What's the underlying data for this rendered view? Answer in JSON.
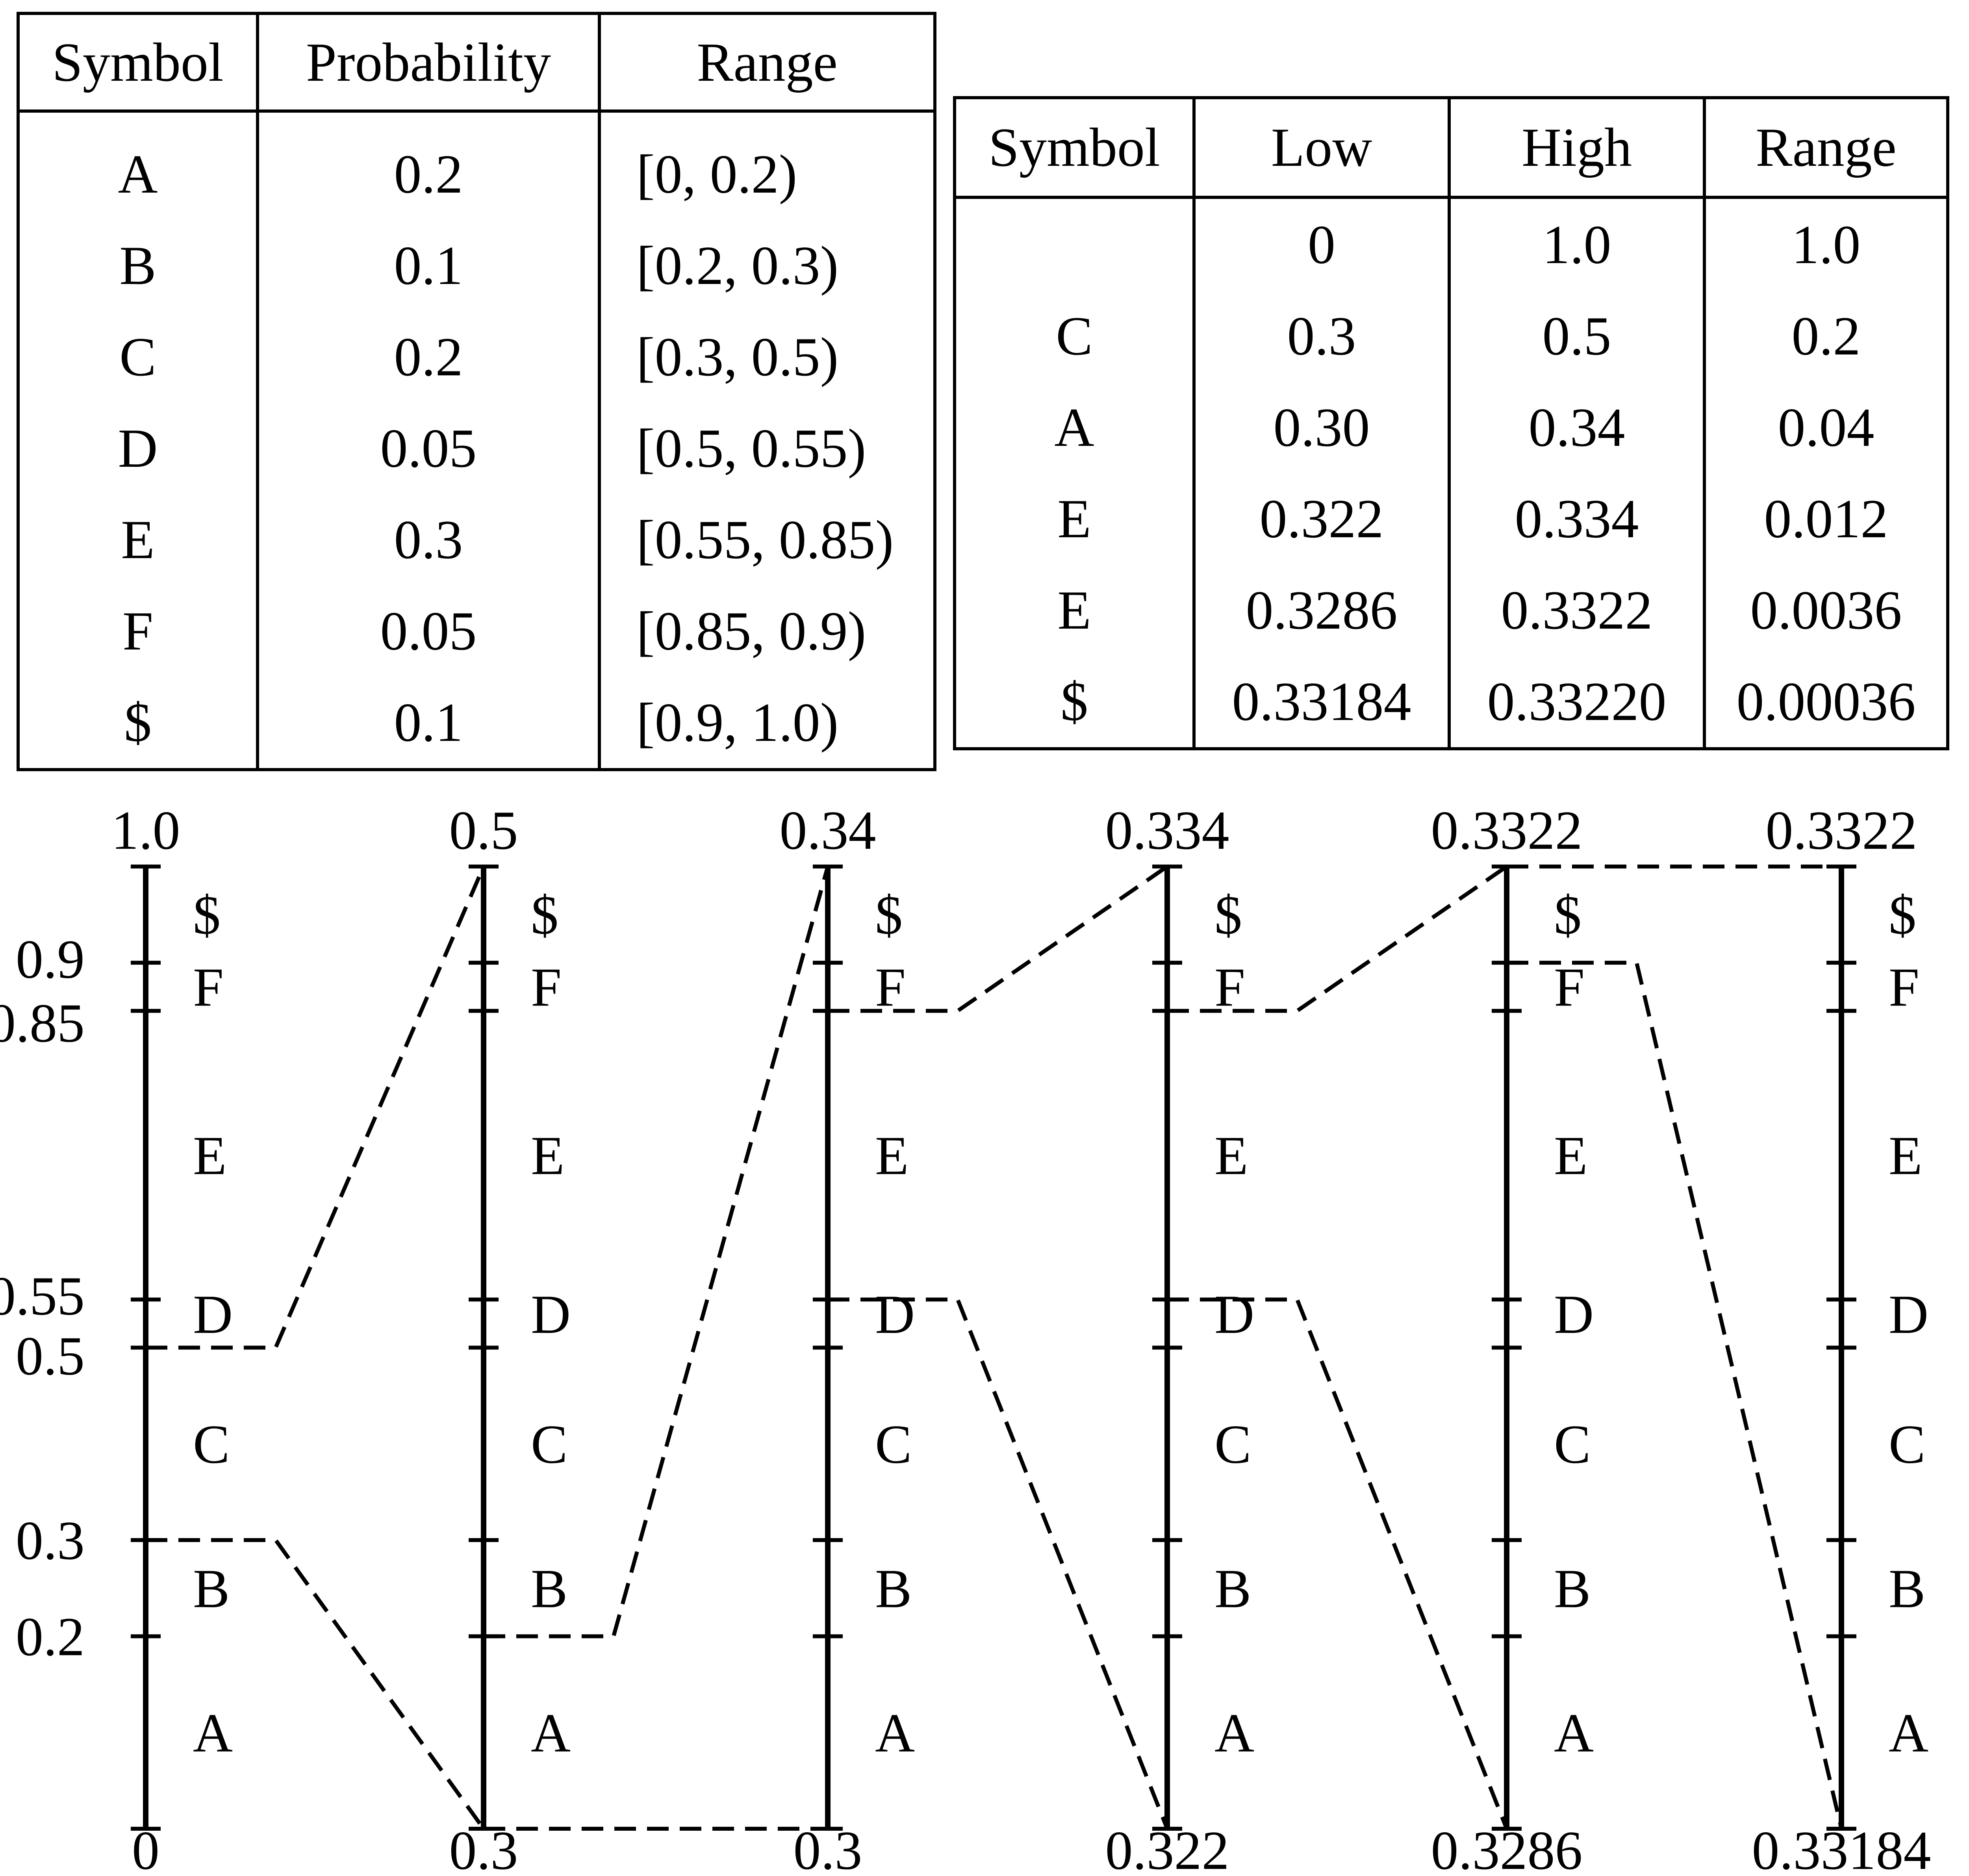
{
  "probability_table": {
    "headers": [
      "Symbol",
      "Probability",
      "Range"
    ],
    "rows": [
      {
        "symbol": "A",
        "probability": "0.2",
        "range": "[0, 0.2)"
      },
      {
        "symbol": "B",
        "probability": "0.1",
        "range": "[0.2, 0.3)"
      },
      {
        "symbol": "C",
        "probability": "0.2",
        "range": "[0.3, 0.5)"
      },
      {
        "symbol": "D",
        "probability": "0.05",
        "range": "[0.5, 0.55)"
      },
      {
        "symbol": "E",
        "probability": "0.3",
        "range": "[0.55, 0.85)"
      },
      {
        "symbol": "F",
        "probability": "0.05",
        "range": "[0.85, 0.9)"
      },
      {
        "symbol": "$",
        "probability": "0.1",
        "range": "[0.9, 1.0)"
      }
    ]
  },
  "coding_table": {
    "headers": [
      "Symbol",
      "Low",
      "High",
      "Range"
    ],
    "rows": [
      {
        "symbol": "",
        "low": "0",
        "high": "1.0",
        "range": "1.0"
      },
      {
        "symbol": "C",
        "low": "0.3",
        "high": "0.5",
        "range": "0.2"
      },
      {
        "symbol": "A",
        "low": "0.30",
        "high": "0.34",
        "range": "0.04"
      },
      {
        "symbol": "E",
        "low": "0.322",
        "high": "0.334",
        "range": "0.012"
      },
      {
        "symbol": "E",
        "low": "0.3286",
        "high": "0.3322",
        "range": "0.0036"
      },
      {
        "symbol": "$",
        "low": "0.33184",
        "high": "0.33220",
        "range": "0.00036"
      }
    ]
  },
  "interval_diagram": {
    "symbols": [
      "A",
      "B",
      "C",
      "D",
      "E",
      "F",
      "$"
    ],
    "boundaries": [
      0.2,
      0.3,
      0.5,
      0.55,
      0.85,
      0.9
    ],
    "boundary_labels": [
      "0.2",
      "0.3",
      "0.5",
      "0.55",
      "0.85",
      "0.9"
    ],
    "scales": [
      {
        "top": "1.0",
        "bottom": "0"
      },
      {
        "top": "0.5",
        "bottom": "0.3"
      },
      {
        "top": "0.34",
        "bottom": "0.3"
      },
      {
        "top": "0.334",
        "bottom": "0.322"
      },
      {
        "top": "0.3322",
        "bottom": "0.3286"
      },
      {
        "top": "0.3322",
        "bottom": "0.33184"
      }
    ],
    "selected_subintervals": [
      {
        "symbol": "C",
        "low": 0.3,
        "high": 0.5
      },
      {
        "symbol": "A",
        "low": 0.0,
        "high": 0.2
      },
      {
        "symbol": "E",
        "low": 0.55,
        "high": 0.85
      },
      {
        "symbol": "E",
        "low": 0.55,
        "high": 0.85
      },
      {
        "symbol": "$",
        "low": 0.9,
        "high": 1.0
      }
    ]
  }
}
